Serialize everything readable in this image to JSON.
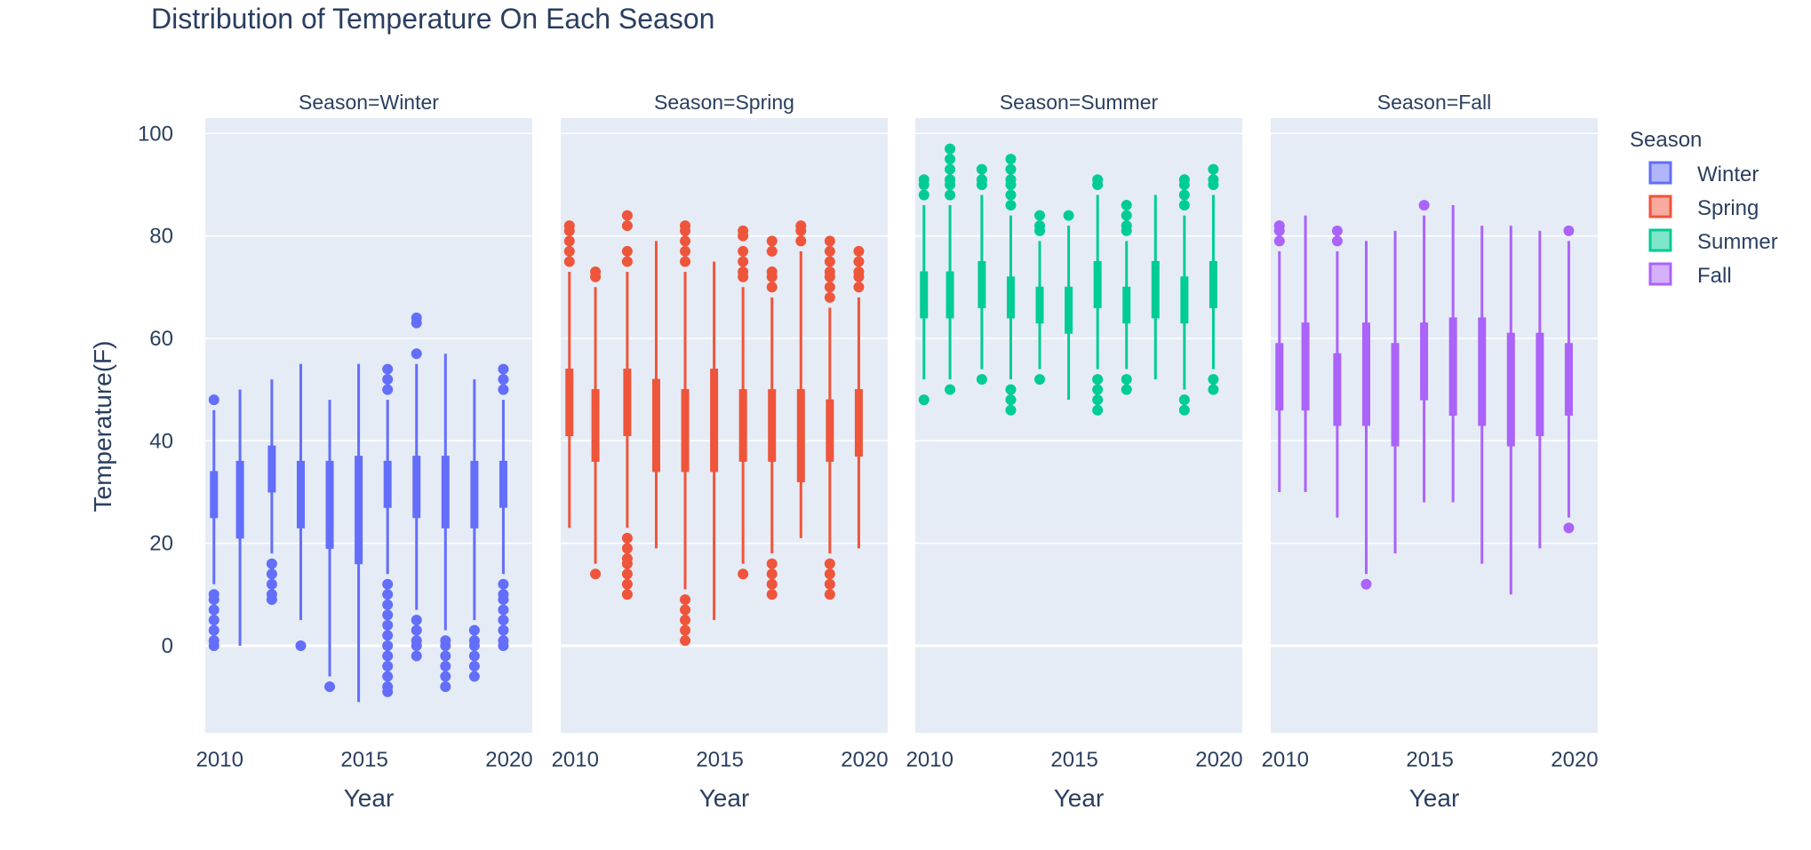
{
  "chart_data": {
    "type": "box",
    "title": "Distribution of Temperature On Each Season",
    "ylabel": "Temperature(F)",
    "xlabel": "Year",
    "ylim": [
      -17,
      103
    ],
    "xlim": [
      2009.5,
      2020.8
    ],
    "y_ticks": [
      0,
      20,
      40,
      60,
      80,
      100
    ],
    "x_ticks": [
      2010,
      2015,
      2020
    ],
    "legend": {
      "title": "Season",
      "position": "right"
    },
    "facets": [
      {
        "label": "Season=Winter",
        "name": "Winter",
        "color": "#636efa",
        "boxes": [
          {
            "x": 2009.8,
            "low": 12,
            "q1": 25,
            "q3": 34,
            "high": 46,
            "outliers": [
              48,
              10,
              9,
              7,
              5,
              3,
              1,
              0
            ]
          },
          {
            "x": 2010.7,
            "low": 0,
            "q1": 21,
            "q3": 36,
            "high": 50,
            "outliers": []
          },
          {
            "x": 2011.8,
            "low": 18,
            "q1": 30,
            "q3": 39,
            "high": 52,
            "outliers": [
              16,
              14,
              12,
              10,
              9
            ]
          },
          {
            "x": 2012.8,
            "low": 5,
            "q1": 23,
            "q3": 36,
            "high": 55,
            "outliers": [
              0
            ]
          },
          {
            "x": 2013.8,
            "low": -6,
            "q1": 19,
            "q3": 36,
            "high": 48,
            "outliers": [
              -8
            ]
          },
          {
            "x": 2014.8,
            "low": -11,
            "q1": 16,
            "q3": 37,
            "high": 55,
            "outliers": []
          },
          {
            "x": 2015.8,
            "low": 14,
            "q1": 27,
            "q3": 36,
            "high": 48,
            "outliers": [
              54,
              52,
              50,
              12,
              10,
              8,
              6,
              4,
              2,
              0,
              -2,
              -4,
              -6,
              -8,
              -9
            ]
          },
          {
            "x": 2016.8,
            "low": 7,
            "q1": 25,
            "q3": 37,
            "high": 55,
            "outliers": [
              64,
              63,
              57,
              5,
              3,
              1,
              0,
              -2
            ]
          },
          {
            "x": 2017.8,
            "low": 3,
            "q1": 23,
            "q3": 37,
            "high": 57,
            "outliers": [
              1,
              0,
              -2,
              -4,
              -6,
              -8
            ]
          },
          {
            "x": 2018.8,
            "low": 5,
            "q1": 23,
            "q3": 36,
            "high": 52,
            "outliers": [
              3,
              1,
              0,
              -2,
              -4,
              -6
            ]
          },
          {
            "x": 2019.8,
            "low": 14,
            "q1": 27,
            "q3": 36,
            "high": 48,
            "outliers": [
              54,
              52,
              50,
              12,
              10,
              9,
              7,
              5,
              3,
              1,
              0
            ]
          }
        ]
      },
      {
        "label": "Season=Spring",
        "name": "Spring",
        "color": "#ef553b",
        "boxes": [
          {
            "x": 2009.8,
            "low": 23,
            "q1": 41,
            "q3": 54,
            "high": 73,
            "outliers": [
              82,
              81,
              79,
              77,
              75
            ]
          },
          {
            "x": 2010.7,
            "low": 16,
            "q1": 36,
            "q3": 50,
            "high": 70,
            "outliers": [
              73,
              72,
              14
            ]
          },
          {
            "x": 2011.8,
            "low": 23,
            "q1": 41,
            "q3": 54,
            "high": 73,
            "outliers": [
              84,
              82,
              77,
              75,
              21,
              19,
              17,
              16,
              14,
              12,
              10
            ]
          },
          {
            "x": 2012.8,
            "low": 19,
            "q1": 34,
            "q3": 52,
            "high": 79,
            "outliers": []
          },
          {
            "x": 2013.8,
            "low": 11,
            "q1": 34,
            "q3": 50,
            "high": 73,
            "outliers": [
              82,
              81,
              79,
              77,
              75,
              9,
              7,
              5,
              3,
              1
            ]
          },
          {
            "x": 2014.8,
            "low": 5,
            "q1": 34,
            "q3": 54,
            "high": 75,
            "outliers": []
          },
          {
            "x": 2015.8,
            "low": 16,
            "q1": 36,
            "q3": 50,
            "high": 70,
            "outliers": [
              81,
              80,
              77,
              75,
              73,
              72,
              14
            ]
          },
          {
            "x": 2016.8,
            "low": 18,
            "q1": 36,
            "q3": 50,
            "high": 68,
            "outliers": [
              79,
              77,
              73,
              72,
              70,
              16,
              14,
              12,
              10
            ]
          },
          {
            "x": 2017.8,
            "low": 21,
            "q1": 32,
            "q3": 50,
            "high": 77,
            "outliers": [
              82,
              81,
              79
            ]
          },
          {
            "x": 2018.8,
            "low": 18,
            "q1": 36,
            "q3": 48,
            "high": 66,
            "outliers": [
              79,
              77,
              75,
              73,
              72,
              70,
              68,
              16,
              14,
              12,
              10
            ]
          },
          {
            "x": 2019.8,
            "low": 19,
            "q1": 37,
            "q3": 50,
            "high": 68,
            "outliers": [
              77,
              75,
              73,
              72,
              70
            ]
          }
        ]
      },
      {
        "label": "Season=Summer",
        "name": "Summer",
        "color": "#00cc96",
        "boxes": [
          {
            "x": 2009.8,
            "low": 52,
            "q1": 64,
            "q3": 73,
            "high": 86,
            "outliers": [
              91,
              90,
              88,
              48
            ]
          },
          {
            "x": 2010.7,
            "low": 52,
            "q1": 64,
            "q3": 73,
            "high": 86,
            "outliers": [
              97,
              95,
              93,
              91,
              90,
              88,
              50
            ]
          },
          {
            "x": 2011.8,
            "low": 54,
            "q1": 66,
            "q3": 75,
            "high": 88,
            "outliers": [
              93,
              91,
              90,
              52
            ]
          },
          {
            "x": 2012.8,
            "low": 52,
            "q1": 64,
            "q3": 72,
            "high": 84,
            "outliers": [
              95,
              93,
              91,
              90,
              88,
              86,
              50,
              48,
              46
            ]
          },
          {
            "x": 2013.8,
            "low": 54,
            "q1": 63,
            "q3": 70,
            "high": 79,
            "outliers": [
              84,
              82,
              81,
              52
            ]
          },
          {
            "x": 2014.8,
            "low": 48,
            "q1": 61,
            "q3": 70,
            "high": 82,
            "outliers": [
              84
            ]
          },
          {
            "x": 2015.8,
            "low": 54,
            "q1": 66,
            "q3": 75,
            "high": 88,
            "outliers": [
              91,
              90,
              52,
              50,
              48,
              46
            ]
          },
          {
            "x": 2016.8,
            "low": 54,
            "q1": 63,
            "q3": 70,
            "high": 79,
            "outliers": [
              86,
              84,
              82,
              81,
              52,
              50
            ]
          },
          {
            "x": 2017.8,
            "low": 52,
            "q1": 64,
            "q3": 75,
            "high": 88,
            "outliers": []
          },
          {
            "x": 2018.8,
            "low": 50,
            "q1": 63,
            "q3": 72,
            "high": 84,
            "outliers": [
              91,
              90,
              88,
              86,
              48,
              46
            ]
          },
          {
            "x": 2019.8,
            "low": 54,
            "q1": 66,
            "q3": 75,
            "high": 88,
            "outliers": [
              93,
              91,
              90,
              52,
              50
            ]
          }
        ]
      },
      {
        "label": "Season=Fall",
        "name": "Fall",
        "color": "#ab63fa",
        "boxes": [
          {
            "x": 2009.8,
            "low": 30,
            "q1": 46,
            "q3": 59,
            "high": 77,
            "outliers": [
              82,
              81,
              79
            ]
          },
          {
            "x": 2010.7,
            "low": 30,
            "q1": 46,
            "q3": 63,
            "high": 84,
            "outliers": []
          },
          {
            "x": 2011.8,
            "low": 25,
            "q1": 43,
            "q3": 57,
            "high": 77,
            "outliers": [
              81,
              79
            ]
          },
          {
            "x": 2012.8,
            "low": 14,
            "q1": 43,
            "q3": 63,
            "high": 79,
            "outliers": [
              12
            ]
          },
          {
            "x": 2013.8,
            "low": 18,
            "q1": 39,
            "q3": 59,
            "high": 81,
            "outliers": []
          },
          {
            "x": 2014.8,
            "low": 28,
            "q1": 48,
            "q3": 63,
            "high": 84,
            "outliers": [
              86
            ]
          },
          {
            "x": 2015.8,
            "low": 28,
            "q1": 45,
            "q3": 64,
            "high": 86,
            "outliers": []
          },
          {
            "x": 2016.8,
            "low": 16,
            "q1": 43,
            "q3": 64,
            "high": 82,
            "outliers": []
          },
          {
            "x": 2017.8,
            "low": 10,
            "q1": 39,
            "q3": 61,
            "high": 82,
            "outliers": []
          },
          {
            "x": 2018.8,
            "low": 19,
            "q1": 41,
            "q3": 61,
            "high": 81,
            "outliers": []
          },
          {
            "x": 2019.8,
            "low": 25,
            "q1": 45,
            "q3": 59,
            "high": 79,
            "outliers": [
              81,
              23
            ]
          }
        ]
      }
    ]
  }
}
